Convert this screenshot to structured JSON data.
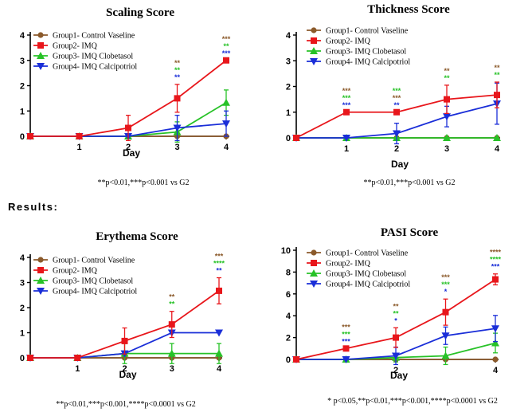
{
  "results_label": "Results:",
  "series_colors": [
    "#8B5A2B",
    "#E8161B",
    "#27C227",
    "#1A2ED8"
  ],
  "series_markers": [
    "circle",
    "square",
    "triangle-up",
    "triangle-down"
  ],
  "chart_data": [
    {
      "type": "line",
      "title": "Scaling Score",
      "xlabel": "Day",
      "ylabel": "",
      "x": [
        0,
        1,
        2,
        3,
        4
      ],
      "x_ticks": [
        "1",
        "2",
        "3",
        "4"
      ],
      "y_ticks": [
        "0",
        "1",
        "2",
        "3",
        "4"
      ],
      "ylim": [
        0,
        4
      ],
      "xlim": [
        0,
        4
      ],
      "legend_position": "top-left",
      "series": [
        {
          "name": "Group1- Control Vaseline",
          "values": [
            0,
            0,
            0,
            0,
            0
          ],
          "errors": [
            0,
            0,
            0,
            0,
            0
          ]
        },
        {
          "name": "Group2- IMQ",
          "values": [
            0,
            0,
            0.33,
            1.5,
            3.0
          ],
          "errors": [
            0,
            0,
            0.5,
            0.55,
            0
          ]
        },
        {
          "name": "Group3- IMQ Clobetasol",
          "values": [
            0,
            0,
            0,
            0.17,
            1.33
          ],
          "errors": [
            0,
            0,
            0,
            0.4,
            0.5
          ]
        },
        {
          "name": "Group4- IMQ  Calcipotriol",
          "values": [
            0,
            0,
            0,
            0.33,
            0.5
          ],
          "errors": [
            0,
            0,
            0,
            0.5,
            0.5
          ]
        }
      ],
      "significance": [
        {
          "x": 3,
          "labels": [
            "**",
            "**",
            "**"
          ],
          "colors": [
            "#8B5A2B",
            "#27C227",
            "#1A2ED8"
          ]
        },
        {
          "x": 4,
          "labels": [
            "***",
            "**",
            "***"
          ],
          "colors": [
            "#8B5A2B",
            "#27C227",
            "#1A2ED8"
          ]
        }
      ],
      "footnote": "**p<0.01,***p<0.001 vs G2"
    },
    {
      "type": "line",
      "title": "Thickness Score",
      "xlabel": "Day",
      "ylabel": "",
      "x": [
        0,
        1,
        2,
        3,
        4
      ],
      "x_ticks": [
        "1",
        "2",
        "3",
        "4"
      ],
      "y_ticks": [
        "0",
        "1",
        "2",
        "3",
        "4"
      ],
      "ylim": [
        0,
        4
      ],
      "xlim": [
        0,
        4
      ],
      "legend_position": "top-right",
      "series": [
        {
          "name": "Group1- Control Vaseline",
          "values": [
            0,
            0,
            0,
            0,
            0
          ],
          "errors": [
            0,
            0,
            0,
            0,
            0
          ]
        },
        {
          "name": "Group2- IMQ",
          "values": [
            0,
            1.0,
            1.0,
            1.5,
            1.67
          ],
          "errors": [
            0,
            0,
            0,
            0.55,
            0.5
          ]
        },
        {
          "name": "Group3- IMQ Clobetasol",
          "values": [
            0,
            0,
            0,
            0,
            0
          ],
          "errors": [
            0,
            0,
            0,
            0,
            0
          ]
        },
        {
          "name": "Group4- IMQ  Calcipotriol",
          "values": [
            0,
            0,
            0.17,
            0.83,
            1.33
          ],
          "errors": [
            0,
            0,
            0.4,
            0.4,
            0.8
          ]
        }
      ],
      "significance": [
        {
          "x": 1,
          "labels": [
            "***",
            "***",
            "***"
          ],
          "colors": [
            "#8B5A2B",
            "#27C227",
            "#1A2ED8"
          ]
        },
        {
          "x": 2,
          "labels": [
            "***",
            "***",
            "**"
          ],
          "colors": [
            "#27C227",
            "#8B5A2B",
            "#1A2ED8"
          ]
        },
        {
          "x": 3,
          "labels": [
            "**",
            "**"
          ],
          "colors": [
            "#8B5A2B",
            "#27C227"
          ]
        },
        {
          "x": 4,
          "labels": [
            "**",
            "**"
          ],
          "colors": [
            "#8B5A2B",
            "#27C227"
          ]
        }
      ],
      "footnote": "**p<0.01,***p<0.001 vs G2"
    },
    {
      "type": "line",
      "title": "Erythema Score",
      "xlabel": "Day",
      "ylabel": "",
      "x": [
        0,
        1,
        2,
        3,
        4
      ],
      "x_ticks": [
        "1",
        "2",
        "3",
        "4"
      ],
      "y_ticks": [
        "0",
        "1",
        "2",
        "3",
        "4"
      ],
      "ylim": [
        0,
        4
      ],
      "xlim": [
        0,
        4
      ],
      "legend_position": "top-left",
      "series": [
        {
          "name": "Group1- Control Vaseline",
          "values": [
            0,
            0,
            0,
            0,
            0
          ],
          "errors": [
            0,
            0,
            0,
            0,
            0
          ]
        },
        {
          "name": "Group2- IMQ",
          "values": [
            0,
            0,
            0.67,
            1.33,
            2.67
          ],
          "errors": [
            0,
            0,
            0.52,
            0.52,
            0.52
          ]
        },
        {
          "name": "Group3- IMQ Clobetasol",
          "values": [
            0,
            0,
            0.17,
            0.17,
            0.17
          ],
          "errors": [
            0,
            0,
            0.4,
            0.4,
            0.4
          ]
        },
        {
          "name": "Group4- IMQ  Calcipotriol",
          "values": [
            0,
            0,
            0.17,
            1.0,
            1.0
          ],
          "errors": [
            0,
            0,
            0,
            0,
            0
          ]
        }
      ],
      "significance": [
        {
          "x": 3,
          "labels": [
            "**",
            "**"
          ],
          "colors": [
            "#8B5A2B",
            "#27C227"
          ]
        },
        {
          "x": 4,
          "labels": [
            "***",
            "****",
            "**"
          ],
          "colors": [
            "#8B5A2B",
            "#27C227",
            "#1A2ED8"
          ]
        }
      ],
      "footnote": "**p<0.01,***p<0.001,****p<0.0001 vs G2"
    },
    {
      "type": "line",
      "title": "PASI Score",
      "xlabel": "Day",
      "ylabel": "",
      "x": [
        0,
        1,
        2,
        3,
        4
      ],
      "x_ticks": [
        "2",
        "4"
      ],
      "x_tick_values": [
        2,
        4
      ],
      "y_ticks": [
        "0",
        "2",
        "4",
        "6",
        "8",
        "10"
      ],
      "ylim": [
        0,
        10
      ],
      "xlim": [
        0,
        4
      ],
      "legend_position": "top-left",
      "series": [
        {
          "name": "Group1- Control Vaseline",
          "values": [
            0,
            0,
            0,
            0,
            0
          ],
          "errors": [
            0,
            0,
            0,
            0,
            0
          ]
        },
        {
          "name": "Group2- IMQ",
          "values": [
            0,
            1.0,
            2.0,
            4.33,
            7.33
          ],
          "errors": [
            0,
            0,
            0.9,
            1.2,
            0.5
          ]
        },
        {
          "name": "Group3- IMQ Clobetasol",
          "values": [
            0,
            0,
            0.17,
            0.33,
            1.5
          ],
          "errors": [
            0,
            0,
            0.4,
            0.8,
            0.9
          ]
        },
        {
          "name": "Group4- IMQ  Calcipotriol",
          "values": [
            0,
            0,
            0.33,
            2.17,
            2.83
          ],
          "errors": [
            0,
            0,
            0.8,
            0.8,
            1.2
          ]
        }
      ],
      "significance": [
        {
          "x": 1,
          "labels": [
            "***",
            "***",
            "***"
          ],
          "colors": [
            "#8B5A2B",
            "#27C227",
            "#1A2ED8"
          ]
        },
        {
          "x": 2,
          "labels": [
            "**",
            "**",
            "*"
          ],
          "colors": [
            "#8B5A2B",
            "#27C227",
            "#1A2ED8"
          ]
        },
        {
          "x": 3,
          "labels": [
            "***",
            "***",
            "*"
          ],
          "colors": [
            "#8B5A2B",
            "#27C227",
            "#1A2ED8"
          ]
        },
        {
          "x": 4,
          "labels": [
            "****",
            "****",
            "***"
          ],
          "colors": [
            "#8B5A2B",
            "#27C227",
            "#1A2ED8"
          ]
        }
      ],
      "footnote": "* p<0.05,**p<0.01,***p<0.001,****p<0.0001 vs G2"
    }
  ]
}
